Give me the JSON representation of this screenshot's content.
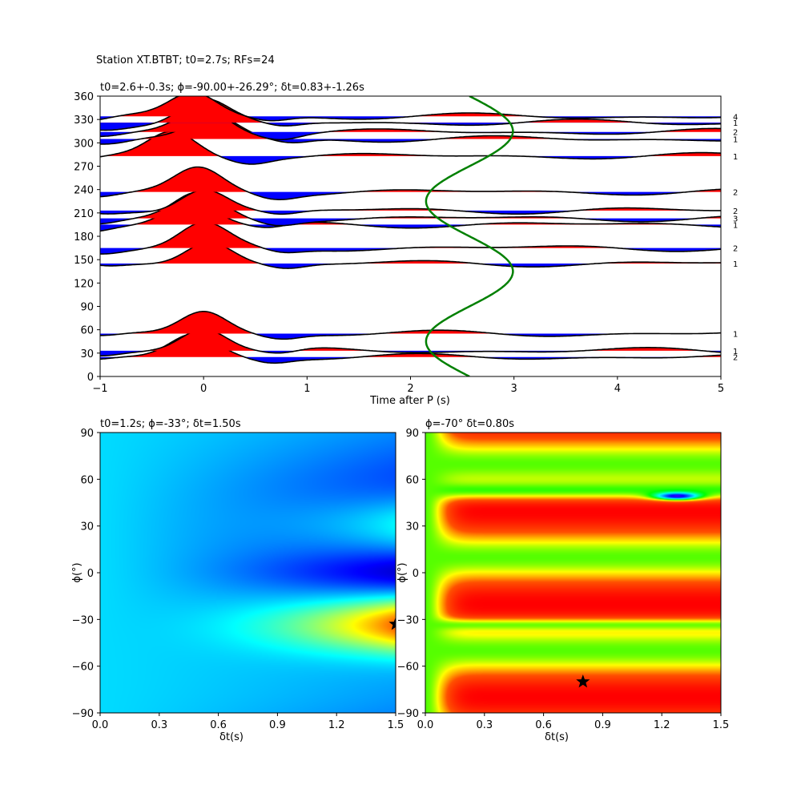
{
  "figure": {
    "suptitle": "Station XT.BTBT; t0=2.7s; RFs=24"
  },
  "chart_data": [
    {
      "type": "line",
      "title": "t0=2.6+-0.3s; ϕ=-90.00+-26.29°; δt=0.83+-1.26s",
      "xlabel": "Time after P (s)",
      "ylabel": "",
      "xlim": [
        -1,
        5
      ],
      "ylim": [
        0,
        360
      ],
      "xticks": [
        "−1",
        "0",
        "1",
        "2",
        "3",
        "4",
        "5"
      ],
      "yticks": [
        "0",
        "30",
        "60",
        "90",
        "120",
        "150",
        "180",
        "210",
        "240",
        "270",
        "300",
        "330",
        "360"
      ],
      "traces": [
        {
          "baz": 25,
          "count": "2",
          "amp": 30,
          "center": -0.1
        },
        {
          "baz": 33,
          "count": "1",
          "amp": 31,
          "center": 0.0
        },
        {
          "baz": 55,
          "count": "1",
          "amp": 30,
          "center": 0.0
        },
        {
          "baz": 145,
          "count": "1",
          "amp": 30,
          "center": 0.05
        },
        {
          "baz": 165,
          "count": "2",
          "amp": 30,
          "center": 0.0
        },
        {
          "baz": 195,
          "count": "1",
          "amp": 30,
          "center": -0.12
        },
        {
          "baz": 203,
          "count": "3",
          "amp": 30,
          "center": -0.05
        },
        {
          "baz": 213,
          "count": "2",
          "amp": 30,
          "center": 0.0
        },
        {
          "baz": 237,
          "count": "2",
          "amp": 29,
          "center": -0.05
        },
        {
          "baz": 283,
          "count": "1",
          "amp": 30,
          "center": -0.3
        },
        {
          "baz": 305,
          "count": "1",
          "amp": 30,
          "center": 0.1
        },
        {
          "baz": 314,
          "count": "2",
          "amp": 31,
          "center": 0.0
        },
        {
          "baz": 326,
          "count": "1",
          "amp": 29,
          "center": 0.0
        },
        {
          "baz": 334,
          "count": "4",
          "amp": 30,
          "center": -0.1
        }
      ],
      "t0_curve": {
        "color": "#008000",
        "mean": 2.57,
        "amplitude": 0.42,
        "phase_deg": -90
      }
    },
    {
      "type": "heatmap",
      "title": "t0=1.2s; ϕ=-33°; δt=1.50s",
      "xlabel": "δt(s)",
      "ylabel": "ϕ(°)",
      "xlim": [
        0,
        1.5
      ],
      "ylim": [
        -90,
        90
      ],
      "xticks": [
        "0.0",
        "0.3",
        "0.6",
        "0.9",
        "1.2",
        "1.5"
      ],
      "yticks": [
        "−90",
        "−60",
        "−30",
        "0",
        "30",
        "60",
        "90"
      ],
      "colormap": "jet",
      "best": {
        "dt": 1.5,
        "phi": -33
      }
    },
    {
      "type": "heatmap",
      "title": "ϕ=-70° δt=0.80s",
      "xlabel": "δt(s)",
      "ylabel": "ϕ(°)",
      "xlim": [
        0,
        1.5
      ],
      "ylim": [
        -90,
        90
      ],
      "xticks": [
        "0.0",
        "0.3",
        "0.6",
        "0.9",
        "1.2",
        "1.5"
      ],
      "yticks": [
        "−90",
        "−60",
        "−30",
        "0",
        "30",
        "60",
        "90"
      ],
      "colormap": "rainbow",
      "best": {
        "dt": 0.8,
        "phi": -70
      }
    }
  ]
}
